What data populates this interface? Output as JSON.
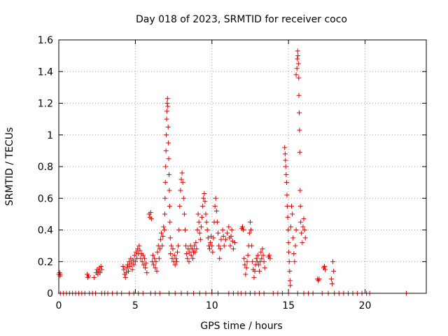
{
  "chart_data": {
    "type": "scatter",
    "title": "Day 018 of 2023, SRMTID for receiver coco",
    "xlabel": "GPS time / hours",
    "ylabel": "SRMTID / TECUs",
    "xlim": [
      0,
      24
    ],
    "ylim": [
      0,
      1.6
    ],
    "xticks": [
      0,
      5,
      10,
      15,
      20
    ],
    "xtick_labels": [
      "0",
      "5",
      "10",
      "15",
      "20"
    ],
    "yticks": [
      0,
      0.2,
      0.4,
      0.6,
      0.8,
      1,
      1.2,
      1.4,
      1.6
    ],
    "ytick_labels": [
      "0",
      "0.2",
      "0.4",
      "0.6",
      "0.8",
      "1",
      "1.2",
      "1.4",
      "1.6"
    ],
    "grid": true,
    "marker": "+",
    "color": "#dd0000",
    "series": [
      {
        "name": "SRMTID",
        "points": [
          [
            0.0,
            0.12
          ],
          [
            0.05,
            0.13
          ],
          [
            0.08,
            0.11
          ],
          [
            0.1,
            0.12
          ],
          [
            0.1,
            0.0
          ],
          [
            0.3,
            0.0
          ],
          [
            0.5,
            0.0
          ],
          [
            0.7,
            0.0
          ],
          [
            0.9,
            0.0
          ],
          [
            1.1,
            0.0
          ],
          [
            1.3,
            0.0
          ],
          [
            1.5,
            0.0
          ],
          [
            1.7,
            0.0
          ],
          [
            1.85,
            0.12
          ],
          [
            1.9,
            0.1
          ],
          [
            1.95,
            0.11
          ],
          [
            2.0,
            0.0
          ],
          [
            2.2,
            0.0
          ],
          [
            2.3,
            0.1
          ],
          [
            2.4,
            0.0
          ],
          [
            2.45,
            0.13
          ],
          [
            2.5,
            0.15
          ],
          [
            2.55,
            0.12
          ],
          [
            2.6,
            0.14
          ],
          [
            2.65,
            0.16
          ],
          [
            2.7,
            0.13
          ],
          [
            2.75,
            0.17
          ],
          [
            2.8,
            0.15
          ],
          [
            2.8,
            0.0
          ],
          [
            3.0,
            0.0
          ],
          [
            3.2,
            0.0
          ],
          [
            3.5,
            0.0
          ],
          [
            3.8,
            0.0
          ],
          [
            4.1,
            0.0
          ],
          [
            4.2,
            0.17
          ],
          [
            4.25,
            0.15
          ],
          [
            4.3,
            0.12
          ],
          [
            4.35,
            0.1
          ],
          [
            4.4,
            0.13
          ],
          [
            4.45,
            0.16
          ],
          [
            4.5,
            0.18
          ],
          [
            4.55,
            0.14
          ],
          [
            4.6,
            0.2
          ],
          [
            4.65,
            0.17
          ],
          [
            4.7,
            0.22
          ],
          [
            4.75,
            0.19
          ],
          [
            4.8,
            0.15
          ],
          [
            4.85,
            0.21
          ],
          [
            4.9,
            0.18
          ],
          [
            4.95,
            0.24
          ],
          [
            5.0,
            0.2
          ],
          [
            5.05,
            0.26
          ],
          [
            5.1,
            0.22
          ],
          [
            5.15,
            0.28
          ],
          [
            5.2,
            0.25
          ],
          [
            5.25,
            0.3
          ],
          [
            5.3,
            0.27
          ],
          [
            5.35,
            0.22
          ],
          [
            5.4,
            0.25
          ],
          [
            5.45,
            0.2
          ],
          [
            5.5,
            0.24
          ],
          [
            5.55,
            0.18
          ],
          [
            5.6,
            0.22
          ],
          [
            5.65,
            0.16
          ],
          [
            5.7,
            0.19
          ],
          [
            5.75,
            0.13
          ],
          [
            4.6,
            0.0
          ],
          [
            4.9,
            0.0
          ],
          [
            5.2,
            0.0
          ],
          [
            5.5,
            0.0
          ],
          [
            5.9,
            0.5
          ],
          [
            5.95,
            0.48
          ],
          [
            6.0,
            0.51
          ],
          [
            6.05,
            0.47
          ],
          [
            6.1,
            0.2
          ],
          [
            6.15,
            0.24
          ],
          [
            6.2,
            0.18
          ],
          [
            6.25,
            0.22
          ],
          [
            6.3,
            0.16
          ],
          [
            6.35,
            0.2
          ],
          [
            6.4,
            0.14
          ],
          [
            6.45,
            0.26
          ],
          [
            6.5,
            0.3
          ],
          [
            6.55,
            0.22
          ],
          [
            6.6,
            0.28
          ],
          [
            6.65,
            0.34
          ],
          [
            6.7,
            0.38
          ],
          [
            6.75,
            0.3
          ],
          [
            6.8,
            0.36
          ],
          [
            6.85,
            0.42
          ],
          [
            6.0,
            0.0
          ],
          [
            6.3,
            0.0
          ],
          [
            6.6,
            0.0
          ],
          [
            6.9,
            0.4
          ],
          [
            6.92,
            0.5
          ],
          [
            6.94,
            0.6
          ],
          [
            6.96,
            0.7
          ],
          [
            6.98,
            0.8
          ],
          [
            7.0,
            0.9
          ],
          [
            7.02,
            1.0
          ],
          [
            7.04,
            1.1
          ],
          [
            7.06,
            1.15
          ],
          [
            7.08,
            1.2
          ],
          [
            7.1,
            1.23
          ],
          [
            7.12,
            1.18
          ],
          [
            7.14,
            1.05
          ],
          [
            7.16,
            0.95
          ],
          [
            7.18,
            0.85
          ],
          [
            7.2,
            0.75
          ],
          [
            7.22,
            0.65
          ],
          [
            7.24,
            0.55
          ],
          [
            7.26,
            0.45
          ],
          [
            7.28,
            0.35
          ],
          [
            7.3,
            0.25
          ],
          [
            7.35,
            0.3
          ],
          [
            7.4,
            0.22
          ],
          [
            7.45,
            0.28
          ],
          [
            7.5,
            0.2
          ],
          [
            7.55,
            0.24
          ],
          [
            7.6,
            0.18
          ],
          [
            7.65,
            0.22
          ],
          [
            7.7,
            0.2
          ],
          [
            7.75,
            0.26
          ],
          [
            7.8,
            0.3
          ],
          [
            7.85,
            0.4
          ],
          [
            7.9,
            0.55
          ],
          [
            7.95,
            0.65
          ],
          [
            8.0,
            0.72
          ],
          [
            8.05,
            0.76
          ],
          [
            8.1,
            0.7
          ],
          [
            8.15,
            0.6
          ],
          [
            8.2,
            0.5
          ],
          [
            8.25,
            0.4
          ],
          [
            8.3,
            0.3
          ],
          [
            8.35,
            0.25
          ],
          [
            8.4,
            0.22
          ],
          [
            8.45,
            0.28
          ],
          [
            8.5,
            0.2
          ],
          [
            8.55,
            0.26
          ],
          [
            8.6,
            0.3
          ],
          [
            8.65,
            0.24
          ],
          [
            8.7,
            0.28
          ],
          [
            8.75,
            0.22
          ],
          [
            8.8,
            0.26
          ],
          [
            8.85,
            0.3
          ],
          [
            8.9,
            0.26
          ],
          [
            8.95,
            0.32
          ],
          [
            9.0,
            0.28
          ],
          [
            7.2,
            0.0
          ],
          [
            7.6,
            0.0
          ],
          [
            8.0,
            0.0
          ],
          [
            8.4,
            0.0
          ],
          [
            8.8,
            0.0
          ],
          [
            9.05,
            0.4
          ],
          [
            9.1,
            0.5
          ],
          [
            9.15,
            0.45
          ],
          [
            9.2,
            0.38
          ],
          [
            9.25,
            0.34
          ],
          [
            9.3,
            0.42
          ],
          [
            9.35,
            0.48
          ],
          [
            9.4,
            0.55
          ],
          [
            9.45,
            0.6
          ],
          [
            9.5,
            0.63
          ],
          [
            9.55,
            0.58
          ],
          [
            9.6,
            0.5
          ],
          [
            9.65,
            0.45
          ],
          [
            9.7,
            0.4
          ],
          [
            9.75,
            0.35
          ],
          [
            9.8,
            0.3
          ],
          [
            9.85,
            0.28
          ],
          [
            9.9,
            0.32
          ],
          [
            9.95,
            0.36
          ],
          [
            10.0,
            0.3
          ],
          [
            10.05,
            0.26
          ],
          [
            10.1,
            0.35
          ],
          [
            10.15,
            0.45
          ],
          [
            10.2,
            0.55
          ],
          [
            10.25,
            0.6
          ],
          [
            10.3,
            0.52
          ],
          [
            10.35,
            0.45
          ],
          [
            10.4,
            0.38
          ],
          [
            10.45,
            0.3
          ],
          [
            10.5,
            0.22
          ],
          [
            10.55,
            0.28
          ],
          [
            10.6,
            0.34
          ],
          [
            9.2,
            0.0
          ],
          [
            9.6,
            0.0
          ],
          [
            10.0,
            0.0
          ],
          [
            10.4,
            0.0
          ],
          [
            10.7,
            0.4
          ],
          [
            10.75,
            0.36
          ],
          [
            10.8,
            0.3
          ],
          [
            10.9,
            0.34
          ],
          [
            11.0,
            0.38
          ],
          [
            11.1,
            0.42
          ],
          [
            11.15,
            0.35
          ],
          [
            11.2,
            0.3
          ],
          [
            11.25,
            0.36
          ],
          [
            11.3,
            0.4
          ],
          [
            11.35,
            0.33
          ],
          [
            11.4,
            0.28
          ],
          [
            11.5,
            0.32
          ],
          [
            11.1,
            0.0
          ],
          [
            11.4,
            0.0
          ],
          [
            11.7,
            0.0
          ],
          [
            11.9,
            0.0
          ],
          [
            11.95,
            0.41
          ],
          [
            12.0,
            0.42
          ],
          [
            12.05,
            0.4
          ],
          [
            12.1,
            0.22
          ],
          [
            12.15,
            0.18
          ],
          [
            12.2,
            0.12
          ],
          [
            12.25,
            0.16
          ],
          [
            12.3,
            0.2
          ],
          [
            12.35,
            0.24
          ],
          [
            12.4,
            0.3
          ],
          [
            12.45,
            0.38
          ],
          [
            12.5,
            0.45
          ],
          [
            12.55,
            0.4
          ],
          [
            12.6,
            0.3
          ],
          [
            12.65,
            0.2
          ],
          [
            12.7,
            0.15
          ],
          [
            12.75,
            0.1
          ],
          [
            12.8,
            0.14
          ],
          [
            12.85,
            0.18
          ],
          [
            12.9,
            0.22
          ],
          [
            12.95,
            0.2
          ],
          [
            13.0,
            0.24
          ],
          [
            13.05,
            0.18
          ],
          [
            13.1,
            0.14
          ],
          [
            13.15,
            0.2
          ],
          [
            13.2,
            0.26
          ],
          [
            13.25,
            0.22
          ],
          [
            13.3,
            0.28
          ],
          [
            13.35,
            0.24
          ],
          [
            13.4,
            0.2
          ],
          [
            13.45,
            0.16
          ],
          [
            12.2,
            0.0
          ],
          [
            12.5,
            0.0
          ],
          [
            12.8,
            0.0
          ],
          [
            13.1,
            0.0
          ],
          [
            13.4,
            0.0
          ],
          [
            13.7,
            0.23
          ],
          [
            13.75,
            0.24
          ],
          [
            13.8,
            0.22
          ],
          [
            14.0,
            0.0
          ],
          [
            14.3,
            0.0
          ],
          [
            14.6,
            0.0
          ],
          [
            14.75,
            0.92
          ],
          [
            14.78,
            0.88
          ],
          [
            14.8,
            0.84
          ],
          [
            14.82,
            0.8
          ],
          [
            14.85,
            0.75
          ],
          [
            14.88,
            0.7
          ],
          [
            14.9,
            0.62
          ],
          [
            14.92,
            0.55
          ],
          [
            14.95,
            0.48
          ],
          [
            14.98,
            0.4
          ],
          [
            15.0,
            0.32
          ],
          [
            15.02,
            0.26
          ],
          [
            15.05,
            0.2
          ],
          [
            15.08,
            0.14
          ],
          [
            15.1,
            0.08
          ],
          [
            15.12,
            0.05
          ],
          [
            15.15,
            0.42
          ],
          [
            15.2,
            0.55
          ],
          [
            15.25,
            0.5
          ],
          [
            15.3,
            0.35
          ],
          [
            15.35,
            0.25
          ],
          [
            15.4,
            0.2
          ],
          [
            15.45,
            0.3
          ],
          [
            15.5,
            0.4
          ],
          [
            15.5,
            1.38
          ],
          [
            15.55,
            1.42
          ],
          [
            15.58,
            1.48
          ],
          [
            15.6,
            1.53
          ],
          [
            15.62,
            1.5
          ],
          [
            15.65,
            1.45
          ],
          [
            15.67,
            1.36
          ],
          [
            15.68,
            1.25
          ],
          [
            15.7,
            1.14
          ],
          [
            15.72,
            1.03
          ],
          [
            15.74,
            0.89
          ],
          [
            15.76,
            0.65
          ],
          [
            15.78,
            0.55
          ],
          [
            15.8,
            0.45
          ],
          [
            15.85,
            0.38
          ],
          [
            15.9,
            0.32
          ],
          [
            15.95,
            0.42
          ],
          [
            16.0,
            0.47
          ],
          [
            16.05,
            0.4
          ],
          [
            16.1,
            0.35
          ],
          [
            15.0,
            0.0
          ],
          [
            15.6,
            0.0
          ],
          [
            16.0,
            0.0
          ],
          [
            16.3,
            0.0
          ],
          [
            16.6,
            0.0
          ],
          [
            16.9,
            0.09
          ],
          [
            16.95,
            0.08
          ],
          [
            17.0,
            0.09
          ],
          [
            17.2,
            0.0
          ],
          [
            17.3,
            0.16
          ],
          [
            17.35,
            0.17
          ],
          [
            17.4,
            0.15
          ],
          [
            17.6,
            0.0
          ],
          [
            17.8,
            0.09
          ],
          [
            17.85,
            0.06
          ],
          [
            17.9,
            0.2
          ],
          [
            17.95,
            0.14
          ],
          [
            18.0,
            0.0
          ],
          [
            18.3,
            0.0
          ],
          [
            18.6,
            0.0
          ],
          [
            18.9,
            0.0
          ],
          [
            19.2,
            0.0
          ],
          [
            19.5,
            0.0
          ],
          [
            19.8,
            0.0
          ],
          [
            20.1,
            0.0
          ],
          [
            20.3,
            0.0
          ],
          [
            22.7,
            0.0
          ]
        ]
      }
    ]
  }
}
